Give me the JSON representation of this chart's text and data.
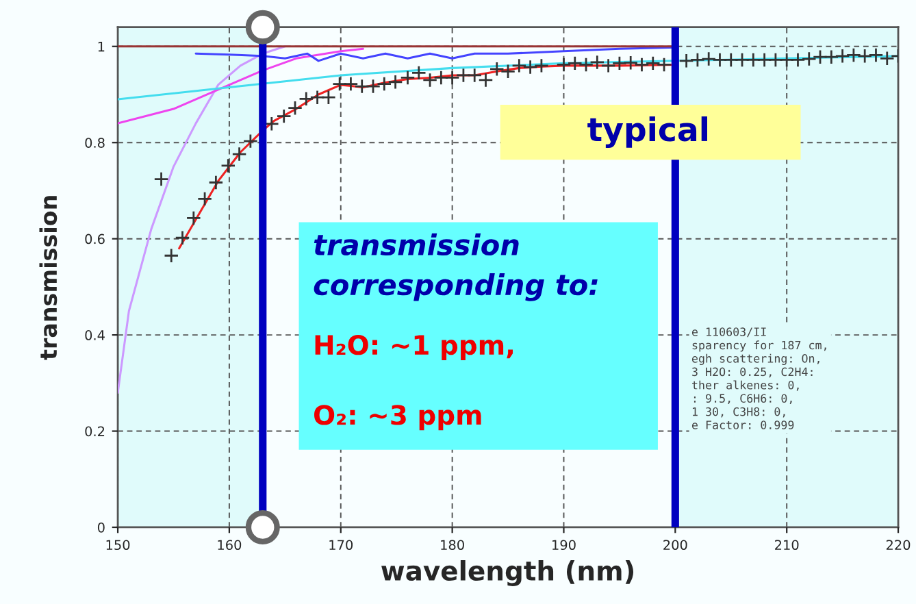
{
  "chart_data": {
    "type": "line",
    "xlabel": "wavelength (nm)",
    "ylabel": "transmission",
    "xlim": [
      150,
      220
    ],
    "xticks": [
      150,
      160,
      170,
      180,
      190,
      200,
      210,
      220
    ],
    "ylim": [
      0,
      1.04
    ],
    "yticks": [
      0,
      0.2,
      0.4,
      0.6,
      0.8,
      1
    ],
    "grid": true,
    "legend": false,
    "series": [
      {
        "color": "#cc99ff",
        "x": [
          150,
          151,
          153,
          155,
          157,
          159,
          161,
          163,
          165
        ],
        "values": [
          0.28,
          0.45,
          0.62,
          0.75,
          0.84,
          0.92,
          0.96,
          0.985,
          1.0
        ]
      },
      {
        "color": "#ee44ee",
        "x": [
          150,
          155,
          160,
          163,
          166,
          170,
          172
        ],
        "values": [
          0.84,
          0.87,
          0.92,
          0.95,
          0.975,
          0.99,
          0.995
        ]
      },
      {
        "color": "#44ddee",
        "x": [
          150,
          160,
          170,
          180,
          190,
          200,
          210,
          220
        ],
        "values": [
          0.89,
          0.915,
          0.94,
          0.955,
          0.965,
          0.97,
          0.975,
          0.98
        ]
      },
      {
        "color": "#4444ff",
        "x": [
          157,
          160,
          163,
          165,
          167,
          168,
          170,
          172,
          174,
          176,
          178,
          180,
          182,
          185,
          190,
          195,
          200
        ],
        "values": [
          0.985,
          0.983,
          0.98,
          0.975,
          0.985,
          0.97,
          0.985,
          0.975,
          0.985,
          0.975,
          0.985,
          0.975,
          0.985,
          0.985,
          0.99,
          0.995,
          0.998
        ]
      },
      {
        "color": "#993333",
        "x": [
          150,
          200
        ],
        "values": [
          1,
          1
        ]
      },
      {
        "color": "#ee2222",
        "x": [
          155.5,
          157,
          159,
          161,
          163,
          164,
          166,
          168,
          170,
          172,
          174,
          176,
          178,
          180,
          182,
          184,
          186,
          188,
          190,
          195,
          200
        ],
        "values": [
          0.58,
          0.64,
          0.72,
          0.78,
          0.825,
          0.845,
          0.87,
          0.9,
          0.92,
          0.915,
          0.925,
          0.932,
          0.935,
          0.94,
          0.94,
          0.948,
          0.955,
          0.958,
          0.96,
          0.96,
          0.962
        ]
      },
      {
        "type": "scatter",
        "marker": "cross",
        "color": "#333333",
        "x": [
          153.9,
          154.8,
          155.8,
          156.8,
          157.8,
          158.8,
          159.9,
          160.9,
          161.9,
          163.8,
          164.9,
          165.9,
          166.9,
          167.9,
          168.9,
          169.9,
          170.9,
          171.9,
          172.9,
          173.9,
          174.9,
          176,
          177,
          178,
          179,
          180,
          181,
          182,
          183,
          184,
          185,
          186,
          187,
          188,
          190,
          191,
          192,
          193,
          194,
          195,
          196,
          197,
          198,
          199,
          201,
          202,
          203,
          204,
          205,
          206,
          207,
          208,
          209,
          210,
          211,
          212,
          213,
          214,
          215,
          216,
          217,
          218,
          219,
          220
        ],
        "values": [
          0.724,
          0.565,
          0.602,
          0.643,
          0.683,
          0.717,
          0.752,
          0.776,
          0.803,
          0.839,
          0.855,
          0.872,
          0.891,
          0.894,
          0.894,
          0.922,
          0.922,
          0.917,
          0.917,
          0.922,
          0.926,
          0.935,
          0.945,
          0.93,
          0.935,
          0.935,
          0.94,
          0.94,
          0.93,
          0.953,
          0.948,
          0.96,
          0.957,
          0.96,
          0.962,
          0.965,
          0.962,
          0.967,
          0.96,
          0.965,
          0.966,
          0.962,
          0.965,
          0.962,
          0.97,
          0.972,
          0.974,
          0.972,
          0.972,
          0.972,
          0.972,
          0.972,
          0.972,
          0.972,
          0.972,
          0.974,
          0.978,
          0.978,
          0.98,
          0.982,
          0.98,
          0.982,
          0.975,
          0.98
        ]
      }
    ],
    "ref_lines": [
      {
        "axis": "x",
        "value": 163,
        "color": "#0000c0"
      },
      {
        "axis": "x",
        "value": 200,
        "color": "#0000c0"
      }
    ],
    "bands": [
      {
        "axis": "x",
        "from": 150,
        "to": 163,
        "color": "#e0fbfb"
      },
      {
        "axis": "x",
        "from": 200,
        "to": 220,
        "color": "#e0fbfb"
      }
    ],
    "annotations": [
      "typical",
      "transmission",
      "corresponding to:",
      "H₂O: ~1 ppm,",
      "O₂: ~3 ppm",
      "e 110603/II\nsparency for 187 cm,\negh scattering: On,\n3 H2O: 0.25, C2H4:\nther alkenes: 0,\n: 9.5, C6H6: 0,\n1 30, C3H8: 0,\ne Factor: 0.999"
    ]
  }
}
